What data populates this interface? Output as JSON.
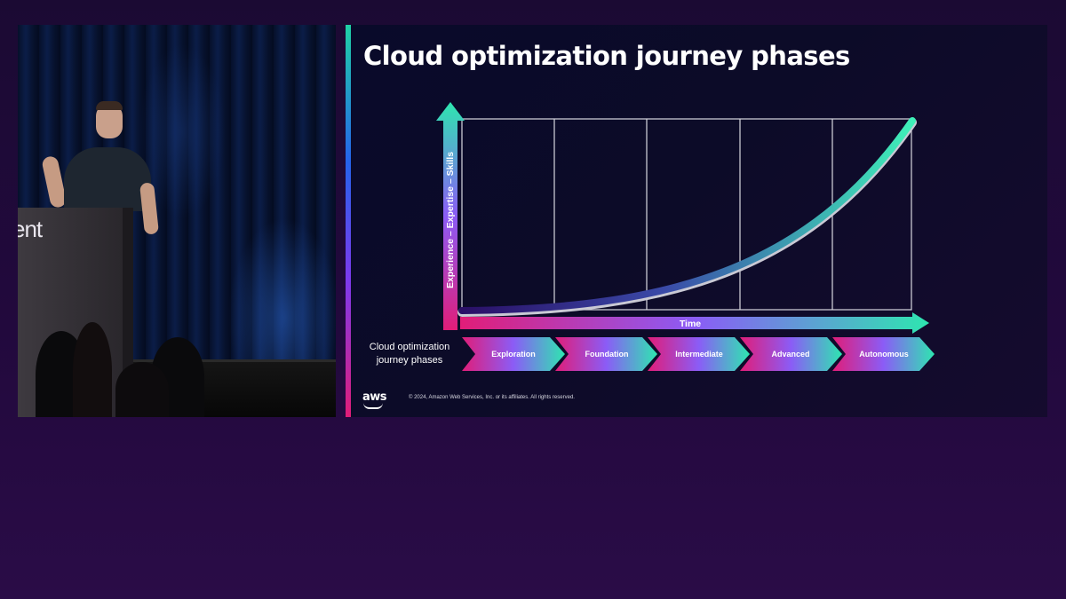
{
  "video_panel": {
    "podium_text": "ent"
  },
  "slide": {
    "title": "Cloud optimization journey phases",
    "y_axis_label": "Experience – Expertise – Skills",
    "x_axis_label": "Time",
    "phases_label_line1": "Cloud optimization",
    "phases_label_line2": "journey phases",
    "phases": [
      "Exploration",
      "Foundation",
      "Intermediate",
      "Advanced",
      "Autonomous"
    ],
    "footer": {
      "logo": "aws",
      "copyright": "© 2024, Amazon Web Services, Inc. or its affiliates. All rights reserved."
    },
    "colors": {
      "gradient_start": "#e11d78",
      "gradient_mid": "#8b5cf6",
      "gradient_end": "#2ee6b0",
      "accent": "#1fd1a5"
    }
  }
}
